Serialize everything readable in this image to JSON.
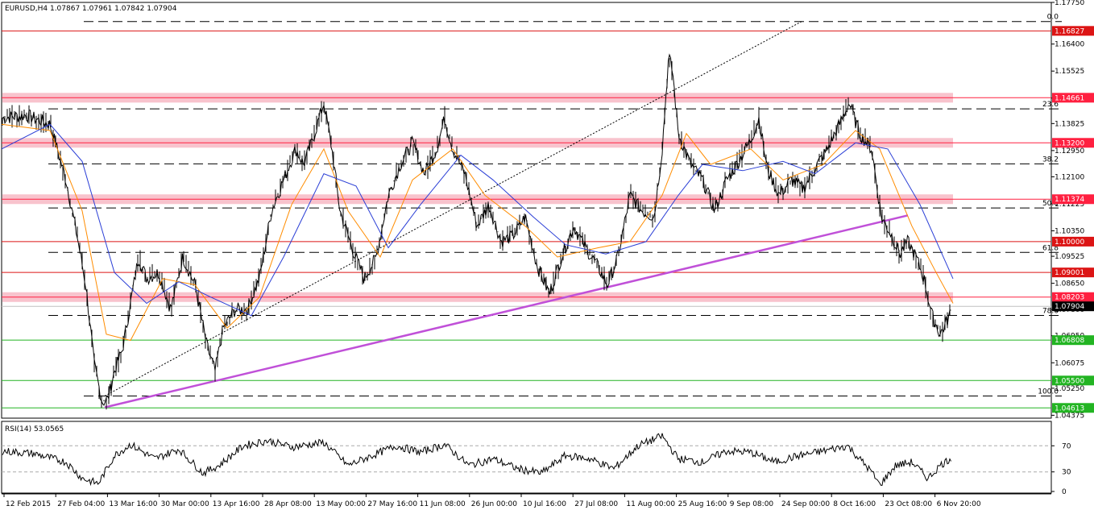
{
  "chart_data": {
    "type": "line",
    "title": "EURUSD,H4  1.07867 1.07961 1.07842 1.07904",
    "instrument": "EURUSD,H4",
    "ohlc": [
      "1.07867",
      "1.07961",
      "1.07842",
      "1.07904"
    ],
    "ylim": [
      1.04281,
      1.17749
    ],
    "y_ticks": [
      "1.17750",
      "1.16400",
      "1.15525",
      "1.14650",
      "1.13825",
      "1.12950",
      "1.12100",
      "1.11225",
      "1.10350",
      "1.09525",
      "1.08650",
      "1.07800",
      "1.06950",
      "1.06075",
      "1.05250",
      "1.04375"
    ],
    "x_ticks": [
      "12 Feb 2015",
      "27 Feb 04:00",
      "13 Mar 16:00",
      "30 Mar 00:00",
      "13 Apr 16:00",
      "28 Apr 08:00",
      "13 May 00:00",
      "27 May 16:00",
      "11 Jun 08:00",
      "26 Jun 00:00",
      "10 Jul 16:00",
      "27 Jul 08:00",
      "11 Aug 00:00",
      "25 Aug 16:00",
      "9 Sep 08:00",
      "24 Sep 00:00",
      "8 Oct 16:00",
      "23 Oct 08:00",
      "6 Nov 20:00"
    ],
    "price_path": [
      [
        0,
        1.14
      ],
      [
        30,
        1.141
      ],
      [
        60,
        1.138
      ],
      [
        80,
        1.12
      ],
      [
        95,
        1.1
      ],
      [
        105,
        1.085
      ],
      [
        115,
        1.06
      ],
      [
        125,
        1.048
      ],
      [
        132,
        1.049
      ],
      [
        140,
        1.058
      ],
      [
        150,
        1.065
      ],
      [
        160,
        1.08
      ],
      [
        170,
        1.095
      ],
      [
        180,
        1.088
      ],
      [
        195,
        1.09
      ],
      [
        210,
        1.078
      ],
      [
        225,
        1.095
      ],
      [
        240,
        1.086
      ],
      [
        255,
        1.066
      ],
      [
        265,
        1.058
      ],
      [
        275,
        1.072
      ],
      [
        290,
        1.078
      ],
      [
        305,
        1.078
      ],
      [
        320,
        1.088
      ],
      [
        335,
        1.11
      ],
      [
        350,
        1.12
      ],
      [
        365,
        1.13
      ],
      [
        375,
        1.125
      ],
      [
        385,
        1.132
      ],
      [
        400,
        1.145
      ],
      [
        410,
        1.13
      ],
      [
        420,
        1.11
      ],
      [
        435,
        1.098
      ],
      [
        450,
        1.088
      ],
      [
        465,
        1.095
      ],
      [
        480,
        1.115
      ],
      [
        495,
        1.125
      ],
      [
        510,
        1.132
      ],
      [
        525,
        1.122
      ],
      [
        540,
        1.13
      ],
      [
        550,
        1.14
      ],
      [
        560,
        1.13
      ],
      [
        575,
        1.122
      ],
      [
        590,
        1.105
      ],
      [
        605,
        1.112
      ],
      [
        620,
        1.1
      ],
      [
        635,
        1.102
      ],
      [
        650,
        1.108
      ],
      [
        665,
        1.092
      ],
      [
        680,
        1.083
      ],
      [
        695,
        1.095
      ],
      [
        710,
        1.105
      ],
      [
        725,
        1.098
      ],
      [
        740,
        1.092
      ],
      [
        752,
        1.086
      ],
      [
        765,
        1.095
      ],
      [
        780,
        1.115
      ],
      [
        795,
        1.11
      ],
      [
        810,
        1.108
      ],
      [
        820,
        1.13
      ],
      [
        828,
        1.16
      ],
      [
        833,
        1.155
      ],
      [
        840,
        1.135
      ],
      [
        855,
        1.125
      ],
      [
        870,
        1.12
      ],
      [
        885,
        1.11
      ],
      [
        900,
        1.12
      ],
      [
        915,
        1.126
      ],
      [
        930,
        1.133
      ],
      [
        940,
        1.14
      ],
      [
        950,
        1.124
      ],
      [
        965,
        1.115
      ],
      [
        980,
        1.12
      ],
      [
        995,
        1.117
      ],
      [
        1010,
        1.124
      ],
      [
        1025,
        1.13
      ],
      [
        1040,
        1.138
      ],
      [
        1052,
        1.145
      ],
      [
        1065,
        1.135
      ],
      [
        1080,
        1.13
      ],
      [
        1092,
        1.108
      ],
      [
        1105,
        1.102
      ],
      [
        1115,
        1.096
      ],
      [
        1125,
        1.1
      ],
      [
        1135,
        1.095
      ],
      [
        1145,
        1.088
      ],
      [
        1155,
        1.076
      ],
      [
        1165,
        1.07
      ],
      [
        1175,
        1.075
      ],
      [
        1181,
        1.079
      ]
    ],
    "moving_averages": [
      {
        "color": "#ff8c00",
        "path": [
          [
            0,
            1.138
          ],
          [
            60,
            1.136
          ],
          [
            100,
            1.11
          ],
          [
            130,
            1.07
          ],
          [
            160,
            1.068
          ],
          [
            200,
            1.088
          ],
          [
            240,
            1.086
          ],
          [
            280,
            1.072
          ],
          [
            320,
            1.082
          ],
          [
            360,
            1.112
          ],
          [
            400,
            1.13
          ],
          [
            430,
            1.11
          ],
          [
            470,
            1.095
          ],
          [
            510,
            1.12
          ],
          [
            560,
            1.13
          ],
          [
            600,
            1.115
          ],
          [
            650,
            1.105
          ],
          [
            690,
            1.095
          ],
          [
            740,
            1.098
          ],
          [
            780,
            1.1
          ],
          [
            820,
            1.115
          ],
          [
            850,
            1.135
          ],
          [
            880,
            1.125
          ],
          [
            930,
            1.13
          ],
          [
            970,
            1.12
          ],
          [
            1020,
            1.125
          ],
          [
            1060,
            1.136
          ],
          [
            1090,
            1.13
          ],
          [
            1130,
            1.105
          ],
          [
            1160,
            1.09
          ],
          [
            1181,
            1.08
          ]
        ]
      },
      {
        "color": "#2b3fd6",
        "path": [
          [
            0,
            1.13
          ],
          [
            60,
            1.138
          ],
          [
            100,
            1.126
          ],
          [
            140,
            1.09
          ],
          [
            180,
            1.08
          ],
          [
            220,
            1.087
          ],
          [
            260,
            1.082
          ],
          [
            310,
            1.076
          ],
          [
            350,
            1.095
          ],
          [
            400,
            1.122
          ],
          [
            440,
            1.118
          ],
          [
            480,
            1.098
          ],
          [
            520,
            1.112
          ],
          [
            570,
            1.128
          ],
          [
            610,
            1.12
          ],
          [
            660,
            1.108
          ],
          [
            700,
            1.099
          ],
          [
            750,
            1.096
          ],
          [
            800,
            1.1
          ],
          [
            840,
            1.115
          ],
          [
            870,
            1.125
          ],
          [
            920,
            1.123
          ],
          [
            970,
            1.126
          ],
          [
            1010,
            1.122
          ],
          [
            1060,
            1.132
          ],
          [
            1100,
            1.13
          ],
          [
            1140,
            1.112
          ],
          [
            1181,
            1.088
          ]
        ]
      }
    ],
    "levels": [
      {
        "value": 1.16827,
        "label": "1.16827",
        "color": "#dc1414",
        "zone": false
      },
      {
        "value": 1.14661,
        "label": "1.14661",
        "color": "#ff2040",
        "zone": true
      },
      {
        "value": 1.132,
        "label": "1.13200",
        "color": "#ff2040",
        "zone": true
      },
      {
        "value": 1.11374,
        "label": "1.11374",
        "color": "#ff2040",
        "zone": true
      },
      {
        "value": 1.1,
        "label": "1.10000",
        "color": "#dc1414",
        "zone": false
      },
      {
        "value": 1.09001,
        "label": "1.09001",
        "color": "#dc1414",
        "zone": false
      },
      {
        "value": 1.08203,
        "label": "1.08203",
        "color": "#ff2040",
        "zone": true
      },
      {
        "value": 1.07904,
        "label": "1.07904",
        "color": "#000000",
        "zone": false
      },
      {
        "value": 1.06808,
        "label": "1.06808",
        "color": "#22b422",
        "zone": false
      },
      {
        "value": 1.055,
        "label": "1.05500",
        "color": "#22b422",
        "zone": false
      },
      {
        "value": 1.04613,
        "label": "1.04613",
        "color": "#22b422",
        "zone": false
      }
    ],
    "fibonacci": [
      {
        "label": "0.0",
        "value": 1.1713
      },
      {
        "label": "23.6",
        "value": 1.143
      },
      {
        "label": "38.2",
        "value": 1.1252
      },
      {
        "label": "50.0",
        "value": 1.1109
      },
      {
        "label": "61.8",
        "value": 1.0965
      },
      {
        "label": "78.6",
        "value": 1.0761
      },
      {
        "label": "100.0",
        "value": 1.05
      }
    ],
    "rsi": {
      "label": "RSI(14) 53.0565",
      "value": 53.0565,
      "ticks": [
        "70",
        "30",
        "0"
      ],
      "levels": [
        70,
        30
      ],
      "path": [
        [
          0,
          62
        ],
        [
          40,
          58
        ],
        [
          80,
          45
        ],
        [
          100,
          20
        ],
        [
          120,
          12
        ],
        [
          140,
          55
        ],
        [
          160,
          72
        ],
        [
          190,
          50
        ],
        [
          220,
          65
        ],
        [
          250,
          28
        ],
        [
          270,
          40
        ],
        [
          300,
          70
        ],
        [
          330,
          78
        ],
        [
          360,
          68
        ],
        [
          400,
          75
        ],
        [
          430,
          40
        ],
        [
          460,
          55
        ],
        [
          490,
          70
        ],
        [
          520,
          60
        ],
        [
          550,
          72
        ],
        [
          580,
          40
        ],
        [
          610,
          50
        ],
        [
          640,
          35
        ],
        [
          670,
          28
        ],
        [
          700,
          55
        ],
        [
          730,
          50
        ],
        [
          760,
          35
        ],
        [
          790,
          70
        ],
        [
          820,
          85
        ],
        [
          840,
          50
        ],
        [
          870,
          45
        ],
        [
          900,
          62
        ],
        [
          930,
          60
        ],
        [
          960,
          45
        ],
        [
          990,
          55
        ],
        [
          1020,
          62
        ],
        [
          1050,
          70
        ],
        [
          1080,
          30
        ],
        [
          1090,
          10
        ],
        [
          1110,
          40
        ],
        [
          1130,
          45
        ],
        [
          1150,
          20
        ],
        [
          1165,
          40
        ],
        [
          1181,
          53
        ]
      ]
    }
  }
}
